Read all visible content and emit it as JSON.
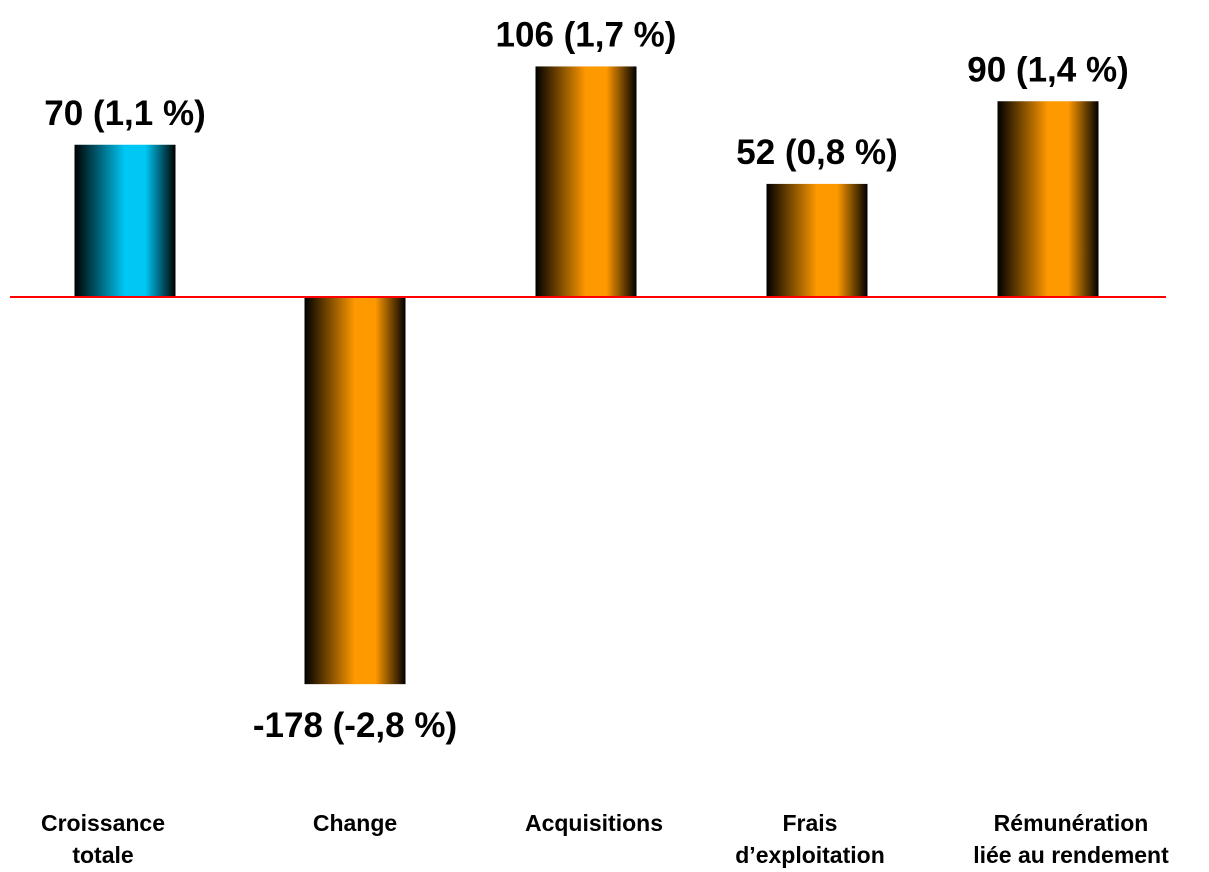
{
  "chart_data": {
    "type": "bar",
    "categories": [
      [
        "Croissance",
        "totale"
      ],
      [
        "Change"
      ],
      [
        "Acquisitions"
      ],
      [
        "Frais",
        "d’exploitation"
      ],
      [
        "Rémunération",
        "liée au rendement"
      ]
    ],
    "values": [
      70,
      -178,
      106,
      52,
      90
    ],
    "data_labels": [
      "70 (1,1 %)",
      "-178 (-2,8 %)",
      "106 (1,7 %)",
      "52 (0,8 %)",
      "90 (1,4 %)"
    ],
    "bar_colors": [
      "#00c8f5",
      "#ff9900",
      "#ff9900",
      "#ff9900",
      "#ff9900"
    ],
    "baseline_color": "#ff0000",
    "title": "",
    "xlabel": "",
    "ylabel": "",
    "grid": false,
    "legend": "none"
  }
}
